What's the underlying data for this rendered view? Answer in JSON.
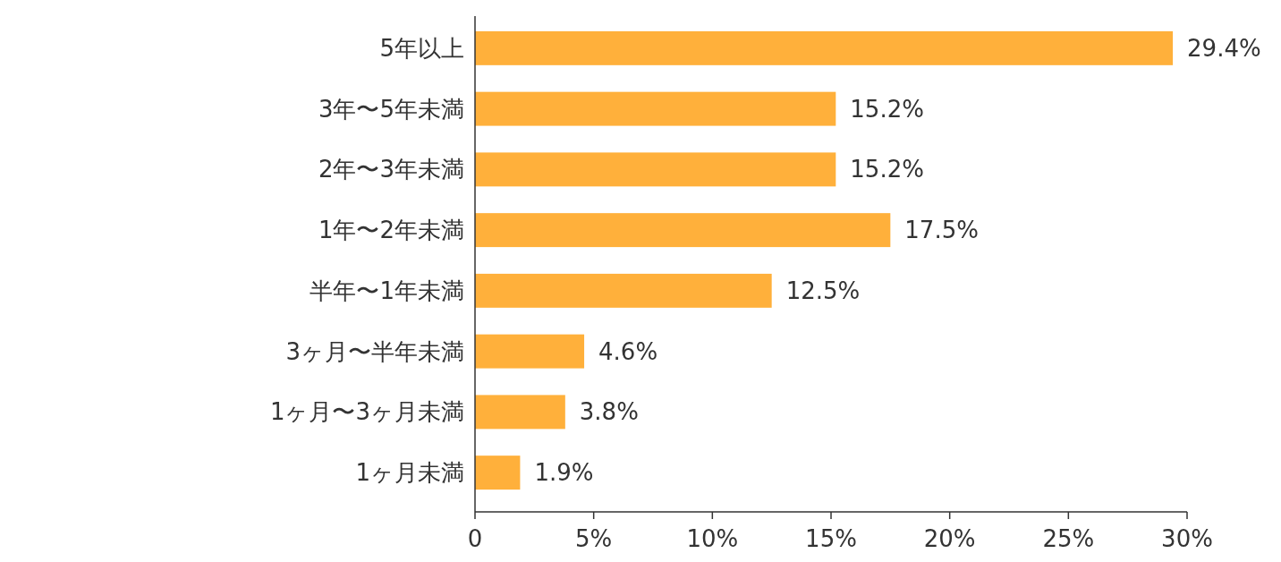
{
  "chart_data": {
    "type": "bar",
    "orientation": "horizontal",
    "categories": [
      "5年以上",
      "3年〜5年未満",
      "2年〜3年未満",
      "1年〜2年未満",
      "半年〜1年未満",
      "3ヶ月〜半年未満",
      "1ヶ月〜3ヶ月未満",
      "1ヶ月未満"
    ],
    "values": [
      29.4,
      15.2,
      15.2,
      17.5,
      12.5,
      4.6,
      3.8,
      1.9
    ],
    "value_labels": [
      "29.4%",
      "15.2%",
      "15.2%",
      "17.5%",
      "12.5%",
      "4.6%",
      "3.8%",
      "1.9%"
    ],
    "color": "#ffb03b",
    "xlim": [
      0,
      30
    ],
    "xticks": [
      0,
      {
        "value": 5,
        "label": "5%"
      },
      {
        "value": 10,
        "label": "10%"
      },
      {
        "value": 15,
        "label": "15%"
      },
      {
        "value": 20,
        "label": "20%"
      },
      {
        "value": 25,
        "label": "25%"
      },
      {
        "value": 30,
        "label": "30%"
      }
    ]
  }
}
